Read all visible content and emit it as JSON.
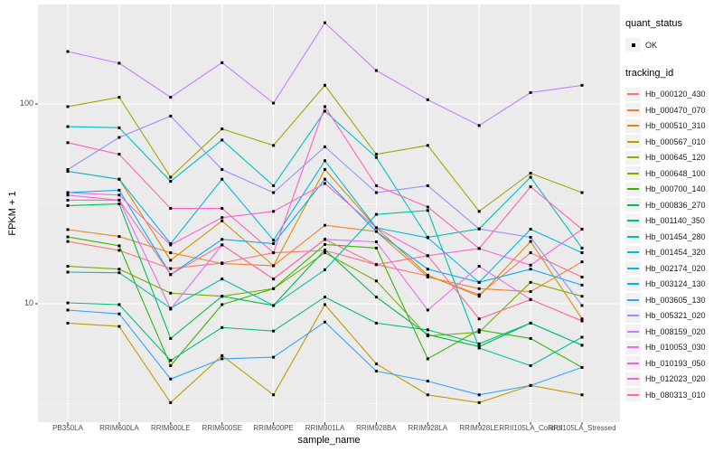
{
  "chart_data": {
    "type": "line",
    "title": "",
    "xlabel": "sample_name",
    "ylabel": "FPKM + 1",
    "y_scale": "log10",
    "ylim": [
      2.55,
      320
    ],
    "y_major_ticks": [
      100,
      10
    ],
    "y_minor_ticks": [
      316.23,
      31.623,
      3.1623
    ],
    "grid": true,
    "panel_bg": "#EBEBEB",
    "grid_color": "#FFFFFF",
    "tick_color": "#333333",
    "tick_text_color": "#4D4D4D",
    "point_marker": "small-black-square",
    "legend_position": "right",
    "legend": {
      "quant_status_title": "quant_status",
      "ok_label": "OK",
      "tracking_id_title": "tracking_id"
    },
    "categories": [
      "PB350LA",
      "RRIM600LA",
      "RRIM600LE",
      "RRIM600SE",
      "RRIM600PE",
      "RRIM901LA",
      "RRIM928BA",
      "RRIM928LA",
      "RRIM928LE",
      "RRII105LA_Control",
      "RRII105LA_Stressed"
    ],
    "series": [
      {
        "name": "Hb_000120_430",
        "color": "#F8766D",
        "values": [
          20.5,
          18.5,
          15.0,
          16.0,
          18.0,
          18.5,
          15.7,
          13.8,
          11.1,
          18.0,
          13.6
        ]
      },
      {
        "name": "Hb_000470_070",
        "color": "#EA8331",
        "values": [
          23.5,
          21.7,
          18.0,
          15.9,
          15.5,
          24.7,
          23.0,
          13.6,
          11.9,
          11.5,
          16.2
        ]
      },
      {
        "name": "Hb_000510_310",
        "color": "#D89000",
        "values": [
          46,
          42,
          16.5,
          26,
          15.5,
          47,
          24,
          13.9,
          10.9,
          20.5,
          8.4
        ]
      },
      {
        "name": "Hb_000567_010",
        "color": "#C09B00",
        "values": [
          8.0,
          7.7,
          3.2,
          5.5,
          3.5,
          9.9,
          5.0,
          3.5,
          3.2,
          3.9,
          3.5
        ]
      },
      {
        "name": "Hb_000645_120",
        "color": "#A3A500",
        "values": [
          97,
          108,
          43,
          75,
          62,
          124,
          56,
          62,
          29,
          45,
          36
        ]
      },
      {
        "name": "Hb_000648_100",
        "color": "#7CAE00",
        "values": [
          15.4,
          14.9,
          11.3,
          10.9,
          11.9,
          18.0,
          13.0,
          6.9,
          7.2,
          12.8,
          10.9
        ]
      },
      {
        "name": "Hb_000700_140",
        "color": "#39B600",
        "values": [
          21.6,
          19.5,
          4.9,
          9.9,
          11.9,
          19.8,
          19.0,
          5.3,
          7.4,
          6.7,
          4.8
        ]
      },
      {
        "name": "Hb_000836_270",
        "color": "#00BB4E",
        "values": [
          31,
          31.6,
          6.7,
          10.9,
          9.8,
          18.6,
          10.8,
          7.0,
          6.1,
          8.0,
          6.2
        ]
      },
      {
        "name": "Hb_001140_350",
        "color": "#00BF7D",
        "values": [
          10.1,
          9.9,
          5.2,
          7.6,
          7.3,
          10.8,
          8.0,
          7.4,
          6.3,
          8.0,
          6.2
        ]
      },
      {
        "name": "Hb_001454_280",
        "color": "#00C1A3",
        "values": [
          14.4,
          14.3,
          9.5,
          13.3,
          9.8,
          14.8,
          28.0,
          29.3,
          6.0,
          4.9,
          6.8
        ]
      },
      {
        "name": "Hb_001454_320",
        "color": "#00BFC4",
        "values": [
          77,
          76,
          41,
          66,
          39,
          92,
          54,
          21.5,
          23.7,
          43,
          19.0
        ]
      },
      {
        "name": "Hb_002174_020",
        "color": "#00BAE0",
        "values": [
          46,
          42,
          20.0,
          42,
          20.8,
          52,
          24,
          21.4,
          12.8,
          23.6,
          18.0
        ]
      },
      {
        "name": "Hb_003124_130",
        "color": "#00B0F6",
        "values": [
          36,
          37,
          14.0,
          21,
          20.0,
          42,
          23,
          14.9,
          12.8,
          14.9,
          12.4
        ]
      },
      {
        "name": "Hb_003605_130",
        "color": "#35A2FF",
        "values": [
          9.3,
          8.9,
          4.2,
          5.3,
          5.4,
          8.1,
          4.6,
          4.1,
          3.5,
          3.9,
          4.8
        ]
      },
      {
        "name": "Hb_005321_020",
        "color": "#9590FF",
        "values": [
          47,
          68,
          87,
          47,
          36,
          61,
          36,
          39,
          23.7,
          21.5,
          9.8
        ]
      },
      {
        "name": "Hb_008159_020",
        "color": "#C77CFF",
        "values": [
          183,
          160,
          108,
          161,
          101,
          255,
          147,
          105,
          78,
          114,
          124
        ]
      },
      {
        "name": "Hb_010053_030",
        "color": "#E76BF3",
        "values": [
          35,
          33,
          9.4,
          19.7,
          13.3,
          21.0,
          20.4,
          9.3,
          15.4,
          10.5,
          8.2
        ]
      },
      {
        "name": "Hb_010193_050",
        "color": "#FA62DB",
        "values": [
          36,
          35,
          19.7,
          27,
          29,
          40,
          24,
          17.4,
          18.9,
          15.6,
          23.6
        ]
      },
      {
        "name": "Hb_012023_020",
        "color": "#FF62BC",
        "values": [
          64,
          56,
          30,
          30,
          18,
          97,
          39,
          30.5,
          18.9,
          38.5,
          23.6
        ]
      },
      {
        "name": "Hb_080313_010",
        "color": "#FF6A98",
        "values": [
          33,
          33,
          14,
          19.7,
          13.3,
          21,
          15.7,
          17.4,
          8.4,
          10.5,
          8.2
        ]
      }
    ]
  }
}
